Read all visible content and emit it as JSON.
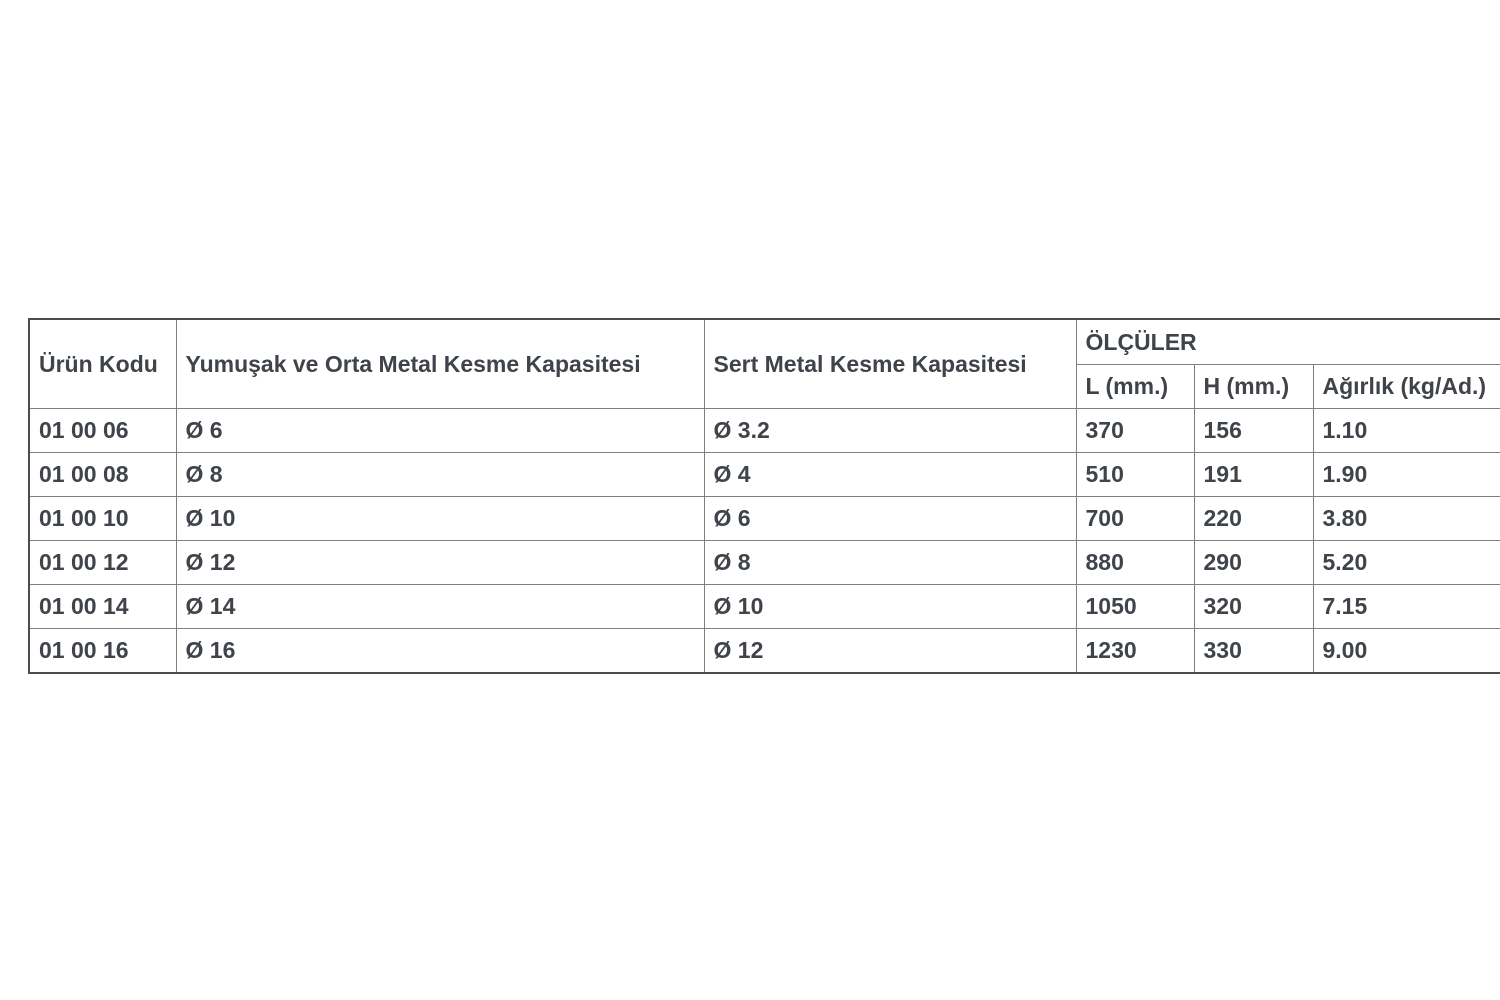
{
  "table": {
    "headers": {
      "product_code": "Ürün Kodu",
      "soft_medium_capacity": "Yumuşak ve Orta Metal Kesme Kapasitesi",
      "hard_capacity": "Sert Metal Kesme Kapasitesi",
      "dimensions_group": "ÖLÇÜLER",
      "length": "L (mm.)",
      "height": "H (mm.)",
      "weight": "Ağırlık (kg/Ad.)"
    },
    "rows": [
      {
        "code": "01 00 06",
        "soft": "Ø 6",
        "hard": "Ø 3.2",
        "l": "370",
        "h": "156",
        "weight": "1.10"
      },
      {
        "code": "01 00 08",
        "soft": "Ø 8",
        "hard": "Ø 4",
        "l": "510",
        "h": "191",
        "weight": "1.90"
      },
      {
        "code": "01 00 10",
        "soft": "Ø 10",
        "hard": "Ø 6",
        "l": "700",
        "h": "220",
        "weight": "3.80"
      },
      {
        "code": "01 00 12",
        "soft": "Ø 12",
        "hard": "Ø 8",
        "l": "880",
        "h": "290",
        "weight": "5.20"
      },
      {
        "code": "01 00 14",
        "soft": "Ø 14",
        "hard": "Ø 10",
        "l": "1050",
        "h": "320",
        "weight": "7.15"
      },
      {
        "code": "01 00 16",
        "soft": "Ø 16",
        "hard": "Ø 12",
        "l": "1230",
        "h": "330",
        "weight": "9.00"
      }
    ]
  },
  "colors": {
    "text": "#3f434a",
    "border_inner": "#7e7e7e",
    "border_outer": "#4c4c4c",
    "background": "#ffffff"
  }
}
